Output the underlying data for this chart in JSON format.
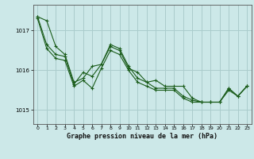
{
  "title": "Graphe pression niveau de la mer (hPa)",
  "background_color": "#cce8e8",
  "grid_color": "#aacccc",
  "line_color": "#1a5c1a",
  "x_values": [
    0,
    1,
    2,
    3,
    4,
    5,
    6,
    7,
    8,
    9,
    10,
    11,
    12,
    13,
    14,
    15,
    16,
    17,
    18,
    19,
    20,
    21,
    22,
    23
  ],
  "series": [
    [
      1017.35,
      1017.25,
      1016.6,
      1016.4,
      1015.7,
      1015.8,
      1016.1,
      1016.15,
      1016.6,
      1016.5,
      1016.05,
      1015.95,
      1015.7,
      1015.75,
      1015.6,
      1015.6,
      1015.6,
      1015.3,
      1015.2,
      1015.2,
      1015.2,
      1015.55,
      1015.35,
      1015.6
    ],
    [
      1017.35,
      1016.65,
      1016.4,
      1016.35,
      1015.65,
      1015.95,
      1015.85,
      1016.15,
      1016.65,
      1016.55,
      1016.1,
      1015.8,
      1015.7,
      1015.55,
      1015.55,
      1015.55,
      1015.35,
      1015.25,
      1015.2,
      1015.2,
      1015.2,
      1015.55,
      1015.35,
      1015.6
    ],
    [
      1017.3,
      1016.55,
      1016.3,
      1016.25,
      1015.6,
      1015.75,
      1015.55,
      1016.05,
      1016.5,
      1016.4,
      1016.0,
      1015.7,
      1015.6,
      1015.5,
      1015.5,
      1015.5,
      1015.3,
      1015.2,
      1015.2,
      1015.2,
      1015.2,
      1015.5,
      1015.35,
      1015.6
    ]
  ],
  "yticks": [
    1015,
    1016,
    1017
  ],
  "ylim": [
    1014.65,
    1017.65
  ],
  "xlim": [
    -0.5,
    23.5
  ],
  "xticks": [
    0,
    1,
    2,
    3,
    4,
    5,
    6,
    7,
    8,
    9,
    10,
    11,
    12,
    13,
    14,
    15,
    16,
    17,
    18,
    19,
    20,
    21,
    22,
    23
  ]
}
